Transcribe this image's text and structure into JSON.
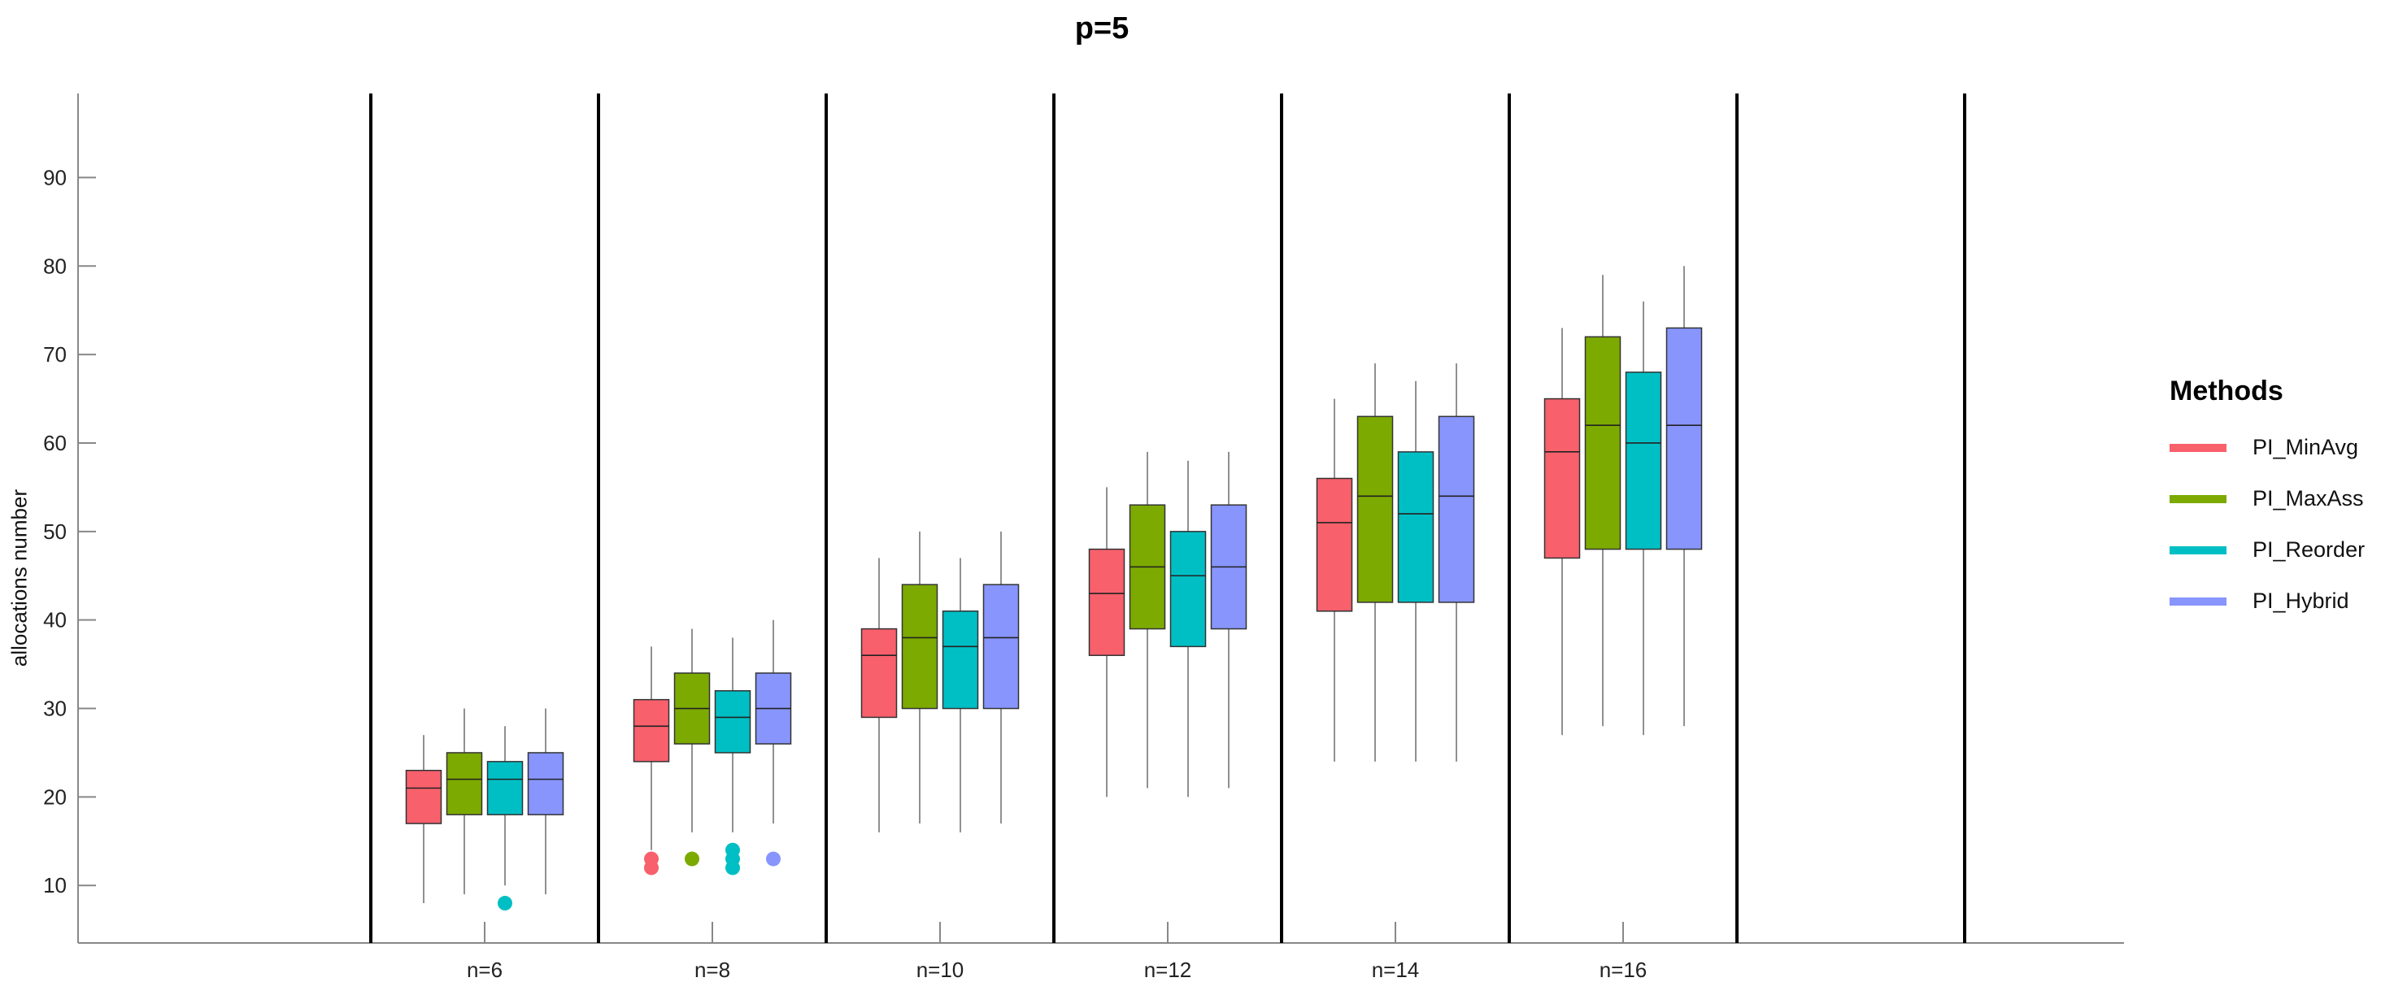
{
  "chart_data": {
    "type": "boxplot",
    "title": "p=5",
    "xlabel": "",
    "ylabel": "allocations number",
    "ylim": [
      3.5,
      99.5
    ],
    "yticks": [
      10,
      20,
      30,
      40,
      50,
      60,
      70,
      80,
      90
    ],
    "categories": [
      "n=6",
      "n=8",
      "n=10",
      "n=12",
      "n=14",
      "n=16"
    ],
    "legend": {
      "title": "Methods",
      "position": "right"
    },
    "series": [
      {
        "name": "PI_MinAvg",
        "color": "#f8606c",
        "stats": [
          {
            "whisker_low": 8,
            "q1": 17,
            "median": 21,
            "q3": 23,
            "whisker_high": 27,
            "outliers": []
          },
          {
            "whisker_low": 14,
            "q1": 24,
            "median": 28,
            "q3": 31,
            "whisker_high": 37,
            "outliers": [
              12,
              13
            ]
          },
          {
            "whisker_low": 16,
            "q1": 29,
            "median": 36,
            "q3": 39,
            "whisker_high": 47,
            "outliers": []
          },
          {
            "whisker_low": 20,
            "q1": 36,
            "median": 43,
            "q3": 48,
            "whisker_high": 55,
            "outliers": []
          },
          {
            "whisker_low": 24,
            "q1": 41,
            "median": 51,
            "q3": 56,
            "whisker_high": 65,
            "outliers": []
          },
          {
            "whisker_low": 27,
            "q1": 47,
            "median": 59,
            "q3": 65,
            "whisker_high": 73,
            "outliers": []
          }
        ]
      },
      {
        "name": "PI_MaxAss",
        "color": "#7caa00",
        "stats": [
          {
            "whisker_low": 9,
            "q1": 18,
            "median": 22,
            "q3": 25,
            "whisker_high": 30,
            "outliers": []
          },
          {
            "whisker_low": 16,
            "q1": 26,
            "median": 30,
            "q3": 34,
            "whisker_high": 39,
            "outliers": [
              13
            ]
          },
          {
            "whisker_low": 17,
            "q1": 30,
            "median": 38,
            "q3": 44,
            "whisker_high": 50,
            "outliers": []
          },
          {
            "whisker_low": 21,
            "q1": 39,
            "median": 46,
            "q3": 53,
            "whisker_high": 59,
            "outliers": []
          },
          {
            "whisker_low": 24,
            "q1": 42,
            "median": 54,
            "q3": 63,
            "whisker_high": 69,
            "outliers": []
          },
          {
            "whisker_low": 28,
            "q1": 48,
            "median": 62,
            "q3": 72,
            "whisker_high": 79,
            "outliers": []
          }
        ]
      },
      {
        "name": "PI_Reorder",
        "color": "#00bfc4",
        "stats": [
          {
            "whisker_low": 10,
            "q1": 18,
            "median": 22,
            "q3": 24,
            "whisker_high": 28,
            "outliers": [
              8
            ]
          },
          {
            "whisker_low": 16,
            "q1": 25,
            "median": 29,
            "q3": 32,
            "whisker_high": 38,
            "outliers": [
              12,
              13,
              14
            ]
          },
          {
            "whisker_low": 16,
            "q1": 30,
            "median": 37,
            "q3": 41,
            "whisker_high": 47,
            "outliers": []
          },
          {
            "whisker_low": 20,
            "q1": 37,
            "median": 45,
            "q3": 50,
            "whisker_high": 58,
            "outliers": []
          },
          {
            "whisker_low": 24,
            "q1": 42,
            "median": 52,
            "q3": 59,
            "whisker_high": 67,
            "outliers": []
          },
          {
            "whisker_low": 27,
            "q1": 48,
            "median": 60,
            "q3": 68,
            "whisker_high": 76,
            "outliers": []
          }
        ]
      },
      {
        "name": "PI_Hybrid",
        "color": "#8795fd",
        "stats": [
          {
            "whisker_low": 9,
            "q1": 18,
            "median": 22,
            "q3": 25,
            "whisker_high": 30,
            "outliers": []
          },
          {
            "whisker_low": 17,
            "q1": 26,
            "median": 30,
            "q3": 34,
            "whisker_high": 40,
            "outliers": [
              13
            ]
          },
          {
            "whisker_low": 17,
            "q1": 30,
            "median": 38,
            "q3": 44,
            "whisker_high": 50,
            "outliers": []
          },
          {
            "whisker_low": 21,
            "q1": 39,
            "median": 46,
            "q3": 53,
            "whisker_high": 59,
            "outliers": []
          },
          {
            "whisker_low": 24,
            "q1": 42,
            "median": 54,
            "q3": 63,
            "whisker_high": 69,
            "outliers": []
          },
          {
            "whisker_low": 28,
            "q1": 48,
            "median": 62,
            "q3": 73,
            "whisker_high": 80,
            "outliers": []
          }
        ]
      }
    ]
  }
}
